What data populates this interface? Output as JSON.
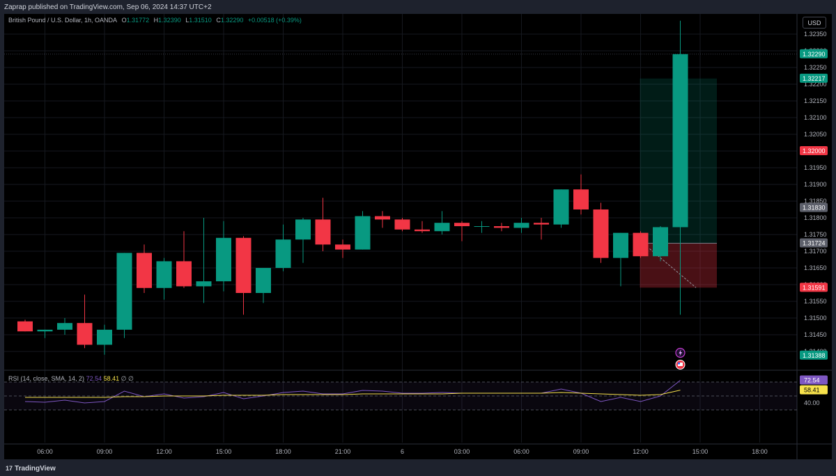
{
  "header": {
    "publisher": "Zaprap published on TradingView.com, Sep 06, 2024 14:37 UTC+2"
  },
  "legend": {
    "symbol": "British Pound / U.S. Dollar, 1h, OANDA",
    "o_label": "O",
    "o_value": "1.31772",
    "h_label": "H",
    "h_value": "1.32390",
    "l_label": "L",
    "l_value": "1.31510",
    "c_label": "C",
    "c_value": "1.32290",
    "change": "+0.00518 (+0.39%)"
  },
  "currency_button": "USD",
  "rsi_legend": {
    "label": "RSI (14, close, SMA, 14, 2)",
    "rsi_value": "72.54",
    "ma_value": "58.41",
    "extra1": "∅",
    "extra2": "∅"
  },
  "footer": {
    "logo_text": "TradingView",
    "logo_mark": "17"
  },
  "colors": {
    "up": "#089981",
    "down": "#f23645",
    "rsi_line": "#7e57c2",
    "rsi_ma": "#f7e24c",
    "background": "#000000"
  },
  "chart_data": [
    {
      "type": "candlestick",
      "title": "British Pound / U.S. Dollar, 1h, OANDA",
      "ylim": [
        1.3134,
        1.324
      ],
      "y_ticks": [
        1.3235,
        1.323,
        1.3225,
        1.322,
        1.3215,
        1.321,
        1.3205,
        1.32,
        1.3195,
        1.319,
        1.3185,
        1.318,
        1.3175,
        1.317,
        1.3165,
        1.316,
        1.3155,
        1.315,
        1.3145,
        1.314
      ],
      "y_tick_labels": [
        "1.32350",
        "1.32300",
        "1.32250",
        "1.32200",
        "1.32150",
        "1.32100",
        "1.32050",
        "1.32000",
        "1.31950",
        "1.31900",
        "1.31850",
        "1.31800",
        "1.31750",
        "1.31700",
        "1.31650",
        "1.31600",
        "1.31550",
        "1.31500",
        "1.31450",
        "1.31400"
      ],
      "x_labels": [
        "06:00",
        "09:00",
        "12:00",
        "15:00",
        "18:00",
        "21:00",
        "6",
        "03:00",
        "06:00",
        "09:00",
        "12:00",
        "15:00",
        "18:00"
      ],
      "x_label_bar_index": [
        1,
        4,
        7,
        10,
        13,
        16,
        19,
        22,
        25,
        28,
        31,
        34,
        37
      ],
      "candles": [
        {
          "o": 1.3149,
          "h": 1.31495,
          "l": 1.3146,
          "c": 1.3146
        },
        {
          "o": 1.3146,
          "h": 1.31465,
          "l": 1.3144,
          "c": 1.31465
        },
        {
          "o": 1.31465,
          "h": 1.315,
          "l": 1.3145,
          "c": 1.31485
        },
        {
          "o": 1.31485,
          "h": 1.3157,
          "l": 1.3141,
          "c": 1.3142
        },
        {
          "o": 1.3142,
          "h": 1.3148,
          "l": 1.3139,
          "c": 1.31465
        },
        {
          "o": 1.31465,
          "h": 1.31695,
          "l": 1.3144,
          "c": 1.31695
        },
        {
          "o": 1.31695,
          "h": 1.3172,
          "l": 1.31575,
          "c": 1.3159
        },
        {
          "o": 1.3159,
          "h": 1.3168,
          "l": 1.31555,
          "c": 1.3167
        },
        {
          "o": 1.3167,
          "h": 1.3176,
          "l": 1.3159,
          "c": 1.31595
        },
        {
          "o": 1.31595,
          "h": 1.318,
          "l": 1.31545,
          "c": 1.3161
        },
        {
          "o": 1.3161,
          "h": 1.3179,
          "l": 1.3158,
          "c": 1.3174
        },
        {
          "o": 1.3174,
          "h": 1.31745,
          "l": 1.3151,
          "c": 1.31575
        },
        {
          "o": 1.31575,
          "h": 1.3165,
          "l": 1.31545,
          "c": 1.3165
        },
        {
          "o": 1.3165,
          "h": 1.3178,
          "l": 1.3164,
          "c": 1.31735
        },
        {
          "o": 1.31735,
          "h": 1.318,
          "l": 1.31665,
          "c": 1.31795
        },
        {
          "o": 1.31795,
          "h": 1.3186,
          "l": 1.317,
          "c": 1.3172
        },
        {
          "o": 1.3172,
          "h": 1.31735,
          "l": 1.3168,
          "c": 1.31705
        },
        {
          "o": 1.31705,
          "h": 1.3182,
          "l": 1.31705,
          "c": 1.31805
        },
        {
          "o": 1.31805,
          "h": 1.3182,
          "l": 1.3177,
          "c": 1.31795
        },
        {
          "o": 1.31795,
          "h": 1.318,
          "l": 1.3176,
          "c": 1.31765
        },
        {
          "o": 1.31765,
          "h": 1.3179,
          "l": 1.31755,
          "c": 1.3176
        },
        {
          "o": 1.3176,
          "h": 1.3182,
          "l": 1.3175,
          "c": 1.31785
        },
        {
          "o": 1.31785,
          "h": 1.3179,
          "l": 1.3173,
          "c": 1.31775
        },
        {
          "o": 1.31775,
          "h": 1.3179,
          "l": 1.31755,
          "c": 1.31775
        },
        {
          "o": 1.31775,
          "h": 1.31785,
          "l": 1.3176,
          "c": 1.3177
        },
        {
          "o": 1.3177,
          "h": 1.318,
          "l": 1.31755,
          "c": 1.31785
        },
        {
          "o": 1.31785,
          "h": 1.318,
          "l": 1.31735,
          "c": 1.3178
        },
        {
          "o": 1.3178,
          "h": 1.31885,
          "l": 1.3177,
          "c": 1.31885
        },
        {
          "o": 1.31885,
          "h": 1.3193,
          "l": 1.3181,
          "c": 1.31825
        },
        {
          "o": 1.31825,
          "h": 1.31845,
          "l": 1.31665,
          "c": 1.3168
        },
        {
          "o": 1.3168,
          "h": 1.31755,
          "l": 1.31595,
          "c": 1.31755
        },
        {
          "o": 1.31755,
          "h": 1.3176,
          "l": 1.3168,
          "c": 1.31685
        },
        {
          "o": 1.31685,
          "h": 1.31775,
          "l": 1.3167,
          "c": 1.31772
        },
        {
          "o": 1.31772,
          "h": 1.3239,
          "l": 1.3151,
          "c": 1.3229
        }
      ],
      "price_labels": [
        {
          "value": 1.3229,
          "text": "1.32290",
          "color": "#089981"
        },
        {
          "value": 1.32217,
          "text": "1.32217",
          "color": "#089981"
        },
        {
          "value": 1.32,
          "text": "1.32000",
          "color": "#f23645"
        },
        {
          "value": 1.3183,
          "text": "1.31830",
          "color": "#5d606b"
        },
        {
          "value": 1.31724,
          "text": "1.31724",
          "color": "#5d606b"
        },
        {
          "value": 1.31591,
          "text": "1.31591",
          "color": "#f23645"
        },
        {
          "value": 1.31388,
          "text": "1.31388",
          "color": "#089981"
        }
      ],
      "position_tool": {
        "type": "long",
        "entry": 1.31724,
        "target": 1.32217,
        "stop": 1.31591,
        "start_bar": 31,
        "end_bar": 34
      }
    },
    {
      "type": "line",
      "title": "RSI (14, close, SMA, 14, 2)",
      "ylim": [
        20,
        80
      ],
      "bands": [
        70,
        50,
        30
      ],
      "y_tick_labels": [
        "40.00"
      ],
      "series": [
        {
          "name": "RSI",
          "values": [
            42,
            41,
            44,
            40,
            42,
            57,
            49,
            53,
            47,
            49,
            55,
            46,
            50,
            55,
            57,
            53,
            53,
            58,
            57,
            54,
            54,
            55,
            54,
            54,
            54,
            54,
            54,
            60,
            54,
            42,
            48,
            42,
            50,
            72.54
          ]
        },
        {
          "name": "RSI-based MA",
          "values": [
            48,
            48,
            48,
            48,
            48,
            49,
            49,
            50,
            50,
            50,
            51,
            51,
            51,
            52,
            52,
            52,
            52,
            53,
            53,
            53,
            53,
            53,
            54,
            54,
            54,
            54,
            54,
            55,
            54,
            53,
            52,
            51,
            52,
            58.41
          ]
        }
      ],
      "last_labels": [
        {
          "text": "72.54",
          "color": "#7e57c2"
        },
        {
          "text": "58.41",
          "color": "#f7e24c"
        }
      ]
    }
  ]
}
